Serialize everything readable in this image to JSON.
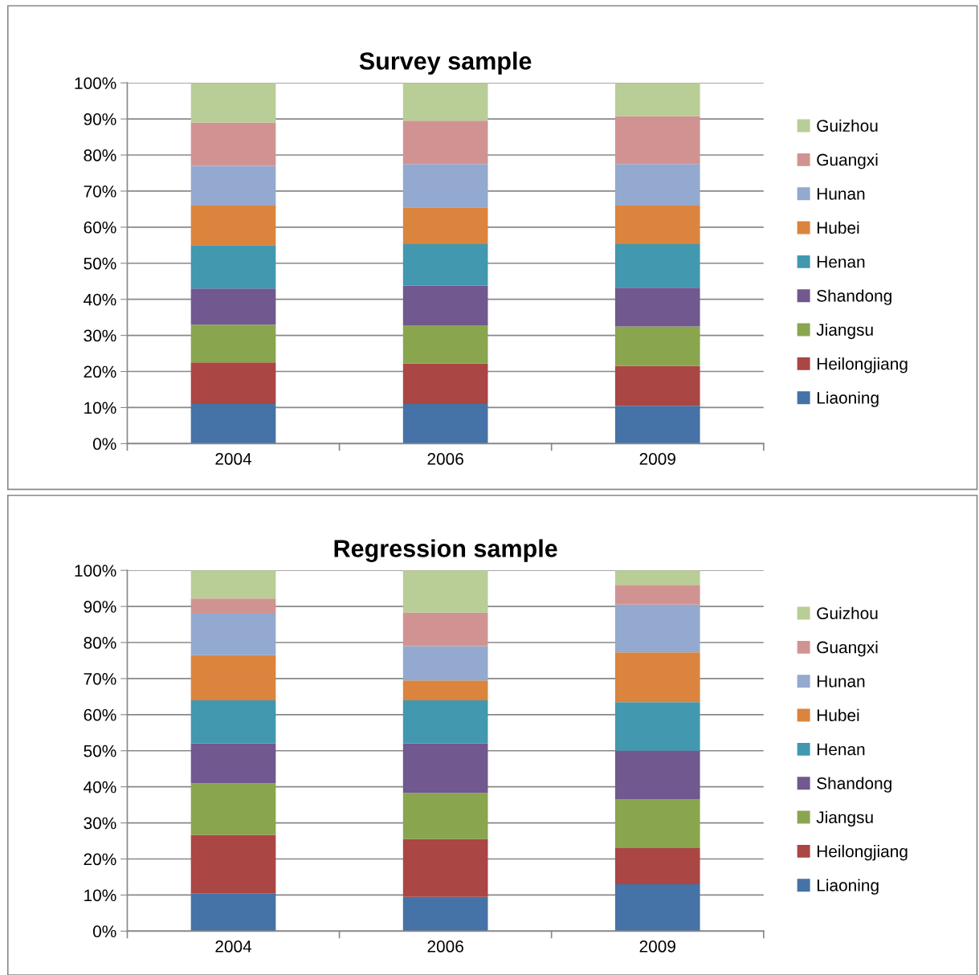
{
  "chart_data": [
    {
      "type": "bar",
      "stacked": true,
      "title": "Survey sample",
      "categories": [
        "2004",
        "2006",
        "2009"
      ],
      "ylim": [
        0,
        100
      ],
      "yticks": [
        {
          "value": 0,
          "label": "0%"
        },
        {
          "value": 10,
          "label": "10%"
        },
        {
          "value": 20,
          "label": "20%"
        },
        {
          "value": 30,
          "label": "30%"
        },
        {
          "value": 40,
          "label": "40%"
        },
        {
          "value": 50,
          "label": "50%"
        },
        {
          "value": 60,
          "label": "60%"
        },
        {
          "value": 70,
          "label": "70%"
        },
        {
          "value": 80,
          "label": "80%"
        },
        {
          "value": 90,
          "label": "90%"
        },
        {
          "value": 100,
          "label": "100%"
        }
      ],
      "grid": "y",
      "legend": "right",
      "series": [
        {
          "name": "Liaoning",
          "color": "#4572a7",
          "values": [
            11,
            11,
            10.5
          ]
        },
        {
          "name": "Heilongjiang",
          "color": "#aa4643",
          "values": [
            11.5,
            11.2,
            11
          ]
        },
        {
          "name": "Jiangsu",
          "color": "#89a54e",
          "values": [
            10.5,
            10.6,
            11
          ]
        },
        {
          "name": "Shandong",
          "color": "#71588f",
          "values": [
            10,
            11,
            10.7
          ]
        },
        {
          "name": "Henan",
          "color": "#4198af",
          "values": [
            12,
            11.5,
            12.1
          ]
        },
        {
          "name": "Hubei",
          "color": "#db843d",
          "values": [
            11,
            10.2,
            10.7
          ]
        },
        {
          "name": "Hunan",
          "color": "#93a9cf",
          "values": [
            11,
            12,
            11.5
          ]
        },
        {
          "name": "Guangxi",
          "color": "#d19392",
          "values": [
            12,
            12,
            13.3
          ]
        },
        {
          "name": "Guizhou",
          "color": "#b9cd96",
          "values": [
            11,
            10.5,
            9.2
          ]
        }
      ]
    },
    {
      "type": "bar",
      "stacked": true,
      "title": "Regression sample",
      "categories": [
        "2004",
        "2006",
        "2009"
      ],
      "ylim": [
        0,
        100
      ],
      "yticks": [
        {
          "value": 0,
          "label": "0%"
        },
        {
          "value": 10,
          "label": "10%"
        },
        {
          "value": 20,
          "label": "20%"
        },
        {
          "value": 30,
          "label": "30%"
        },
        {
          "value": 40,
          "label": "40%"
        },
        {
          "value": 50,
          "label": "50%"
        },
        {
          "value": 60,
          "label": "60%"
        },
        {
          "value": 70,
          "label": "70%"
        },
        {
          "value": 80,
          "label": "80%"
        },
        {
          "value": 90,
          "label": "90%"
        },
        {
          "value": 100,
          "label": "100%"
        }
      ],
      "grid": "y",
      "legend": "right",
      "series": [
        {
          "name": "Liaoning",
          "color": "#4572a7",
          "values": [
            10.5,
            9.5,
            13
          ]
        },
        {
          "name": "Heilongjiang",
          "color": "#aa4643",
          "values": [
            16.2,
            16,
            10
          ]
        },
        {
          "name": "Jiangsu",
          "color": "#89a54e",
          "values": [
            14.3,
            12.8,
            13.5
          ]
        },
        {
          "name": "Shandong",
          "color": "#71588f",
          "values": [
            11,
            13.7,
            13.5
          ]
        },
        {
          "name": "Henan",
          "color": "#4198af",
          "values": [
            12,
            12,
            13.5
          ]
        },
        {
          "name": "Hubei",
          "color": "#db843d",
          "values": [
            12.5,
            5.5,
            13.8
          ]
        },
        {
          "name": "Hunan",
          "color": "#93a9cf",
          "values": [
            11.5,
            9.5,
            13.2
          ]
        },
        {
          "name": "Guangxi",
          "color": "#d19392",
          "values": [
            4.2,
            9.3,
            5.5
          ]
        },
        {
          "name": "Guizhou",
          "color": "#b9cd96",
          "values": [
            7.8,
            11.7,
            4
          ]
        }
      ]
    }
  ]
}
